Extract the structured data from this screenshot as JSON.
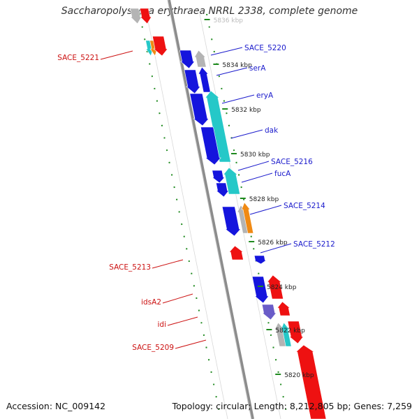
{
  "title": "Saccharopolyspora erythraea NRRL 2338, complete genome",
  "footer": {
    "accession": "Accession: NC_009142",
    "summary": "Topology: circular; Length: 8,212,805 bp; Genes: 7,259"
  },
  "colors": {
    "backbone": "#8c8c8c",
    "ruler_ticks": "#1f8a1f",
    "right_labels": "#1a1acc",
    "left_labels": "#cc1111",
    "blue": "#1515dd",
    "teal": "#25c8c8",
    "orange": "#f08a14",
    "red": "#ee1111",
    "gray": "#b4b4b4",
    "purple": "#6a5cc8"
  },
  "ruler": {
    "labels": [
      "5836 kbp",
      "5834 kbp",
      "5832 kbp",
      "5830 kbp",
      "5828 kbp",
      "5826 kbp",
      "5824 kbp",
      "5822 kbp",
      "5820 kbp"
    ]
  },
  "features_right": [
    {
      "label": "SACE_5220"
    },
    {
      "label": "serA"
    },
    {
      "label": "eryA"
    },
    {
      "label": "dak"
    },
    {
      "label": "SACE_5216"
    },
    {
      "label": "fucA"
    },
    {
      "label": "SACE_5214"
    },
    {
      "label": "SACE_5212"
    }
  ],
  "features_left": [
    {
      "label": "SACE_5221"
    },
    {
      "label": "SACE_5213"
    },
    {
      "label": "idsA2"
    },
    {
      "label": "idi"
    },
    {
      "label": "SACE_5209"
    }
  ]
}
